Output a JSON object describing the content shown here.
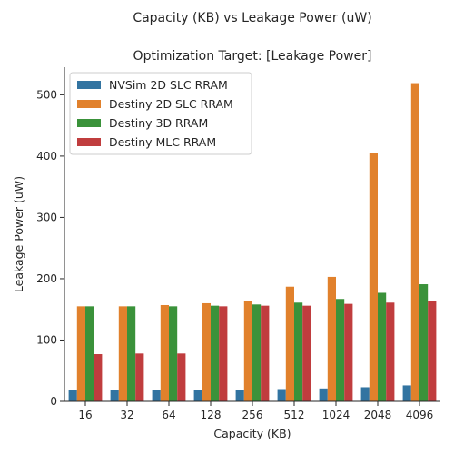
{
  "chart_data": {
    "type": "bar",
    "title": "Capacity (KB) vs Leakage Power (uW)",
    "subtitle": "Optimization Target: [Leakage Power]",
    "xlabel": "Capacity (KB)",
    "ylabel": "Leakage Power (uW)",
    "categories": [
      "16",
      "32",
      "64",
      "128",
      "256",
      "512",
      "1024",
      "2048",
      "4096"
    ],
    "ylim": [
      0,
      545
    ],
    "yticks": [
      0,
      100,
      200,
      300,
      400,
      500
    ],
    "grid": false,
    "legend_position": "top-left",
    "series": [
      {
        "name": "NVSim 2D SLC RRAM",
        "color": "#3274a1",
        "values": [
          18,
          19,
          19,
          19,
          19,
          20,
          21,
          23,
          26
        ]
      },
      {
        "name": "Destiny 2D SLC RRAM",
        "color": "#e1812c",
        "values": [
          155,
          155,
          157,
          160,
          164,
          187,
          203,
          405,
          519
        ]
      },
      {
        "name": "Destiny 3D RRAM",
        "color": "#3a923a",
        "values": [
          155,
          155,
          155,
          156,
          158,
          161,
          167,
          177,
          191
        ]
      },
      {
        "name": "Destiny MLC RRAM",
        "color": "#c03d3e",
        "values": [
          77,
          78,
          78,
          155,
          156,
          156,
          159,
          161,
          164
        ]
      }
    ]
  }
}
